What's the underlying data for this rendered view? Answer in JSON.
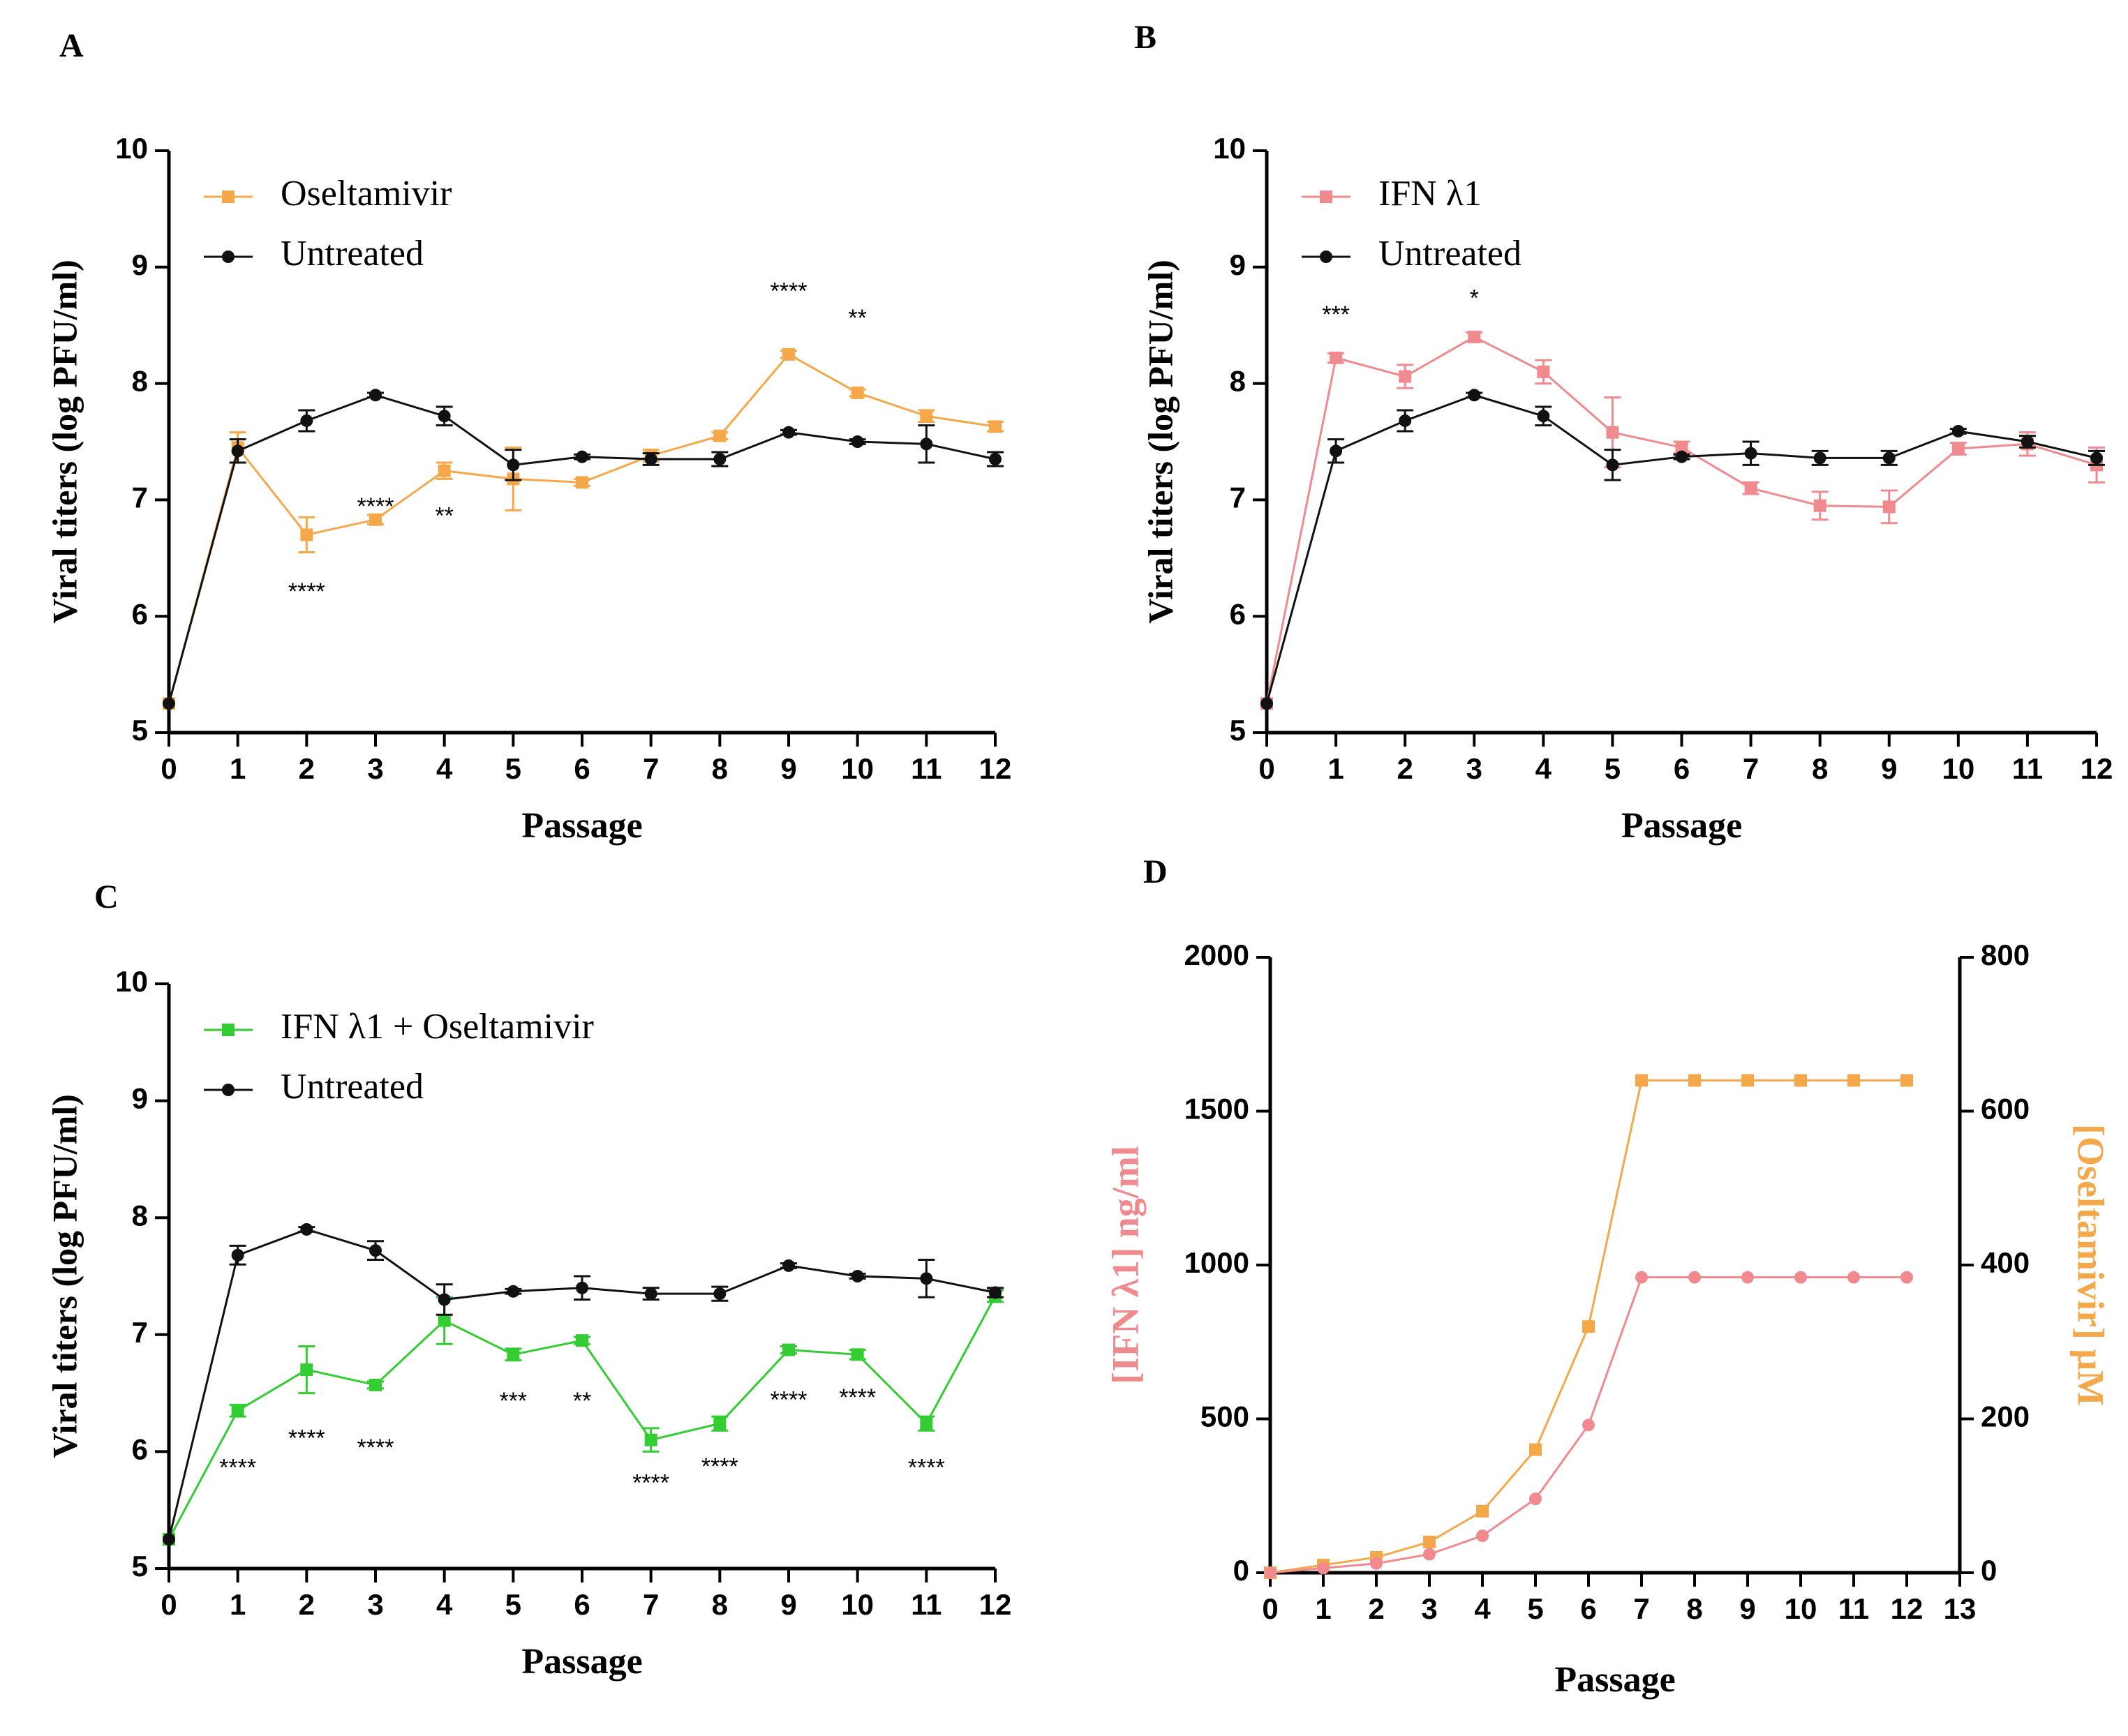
{
  "figure": {
    "panels": [
      "A",
      "B",
      "C",
      "D"
    ]
  },
  "colors": {
    "untreated": "#111111",
    "oseltamivir": "#f5a84a",
    "ifn": "#f08a8e",
    "combo": "#33cc33",
    "axis": "#000000"
  },
  "chart_data": [
    {
      "panel": "A",
      "type": "line",
      "xlabel": "Passage",
      "ylabel": "Viral titers (log PFU/ml)",
      "xlim": [
        0,
        12
      ],
      "ylim": [
        5,
        10
      ],
      "xticks": [
        0,
        1,
        2,
        3,
        4,
        5,
        6,
        7,
        8,
        9,
        10,
        11,
        12
      ],
      "yticks": [
        5,
        6,
        7,
        8,
        9,
        10
      ],
      "legend_position": "top-left",
      "series": [
        {
          "name": "Oseltamivir",
          "color_key": "oseltamivir",
          "marker": "square",
          "x": [
            0,
            1,
            2,
            3,
            4,
            5,
            6,
            7,
            8,
            9,
            10,
            11,
            12
          ],
          "values": [
            5.25,
            7.45,
            6.7,
            6.83,
            7.25,
            7.18,
            7.15,
            7.38,
            7.55,
            8.25,
            7.92,
            7.72,
            7.63
          ],
          "errors": [
            0,
            0.13,
            0.15,
            0.04,
            0.07,
            0.27,
            0.03,
            0.05,
            0.03,
            0.03,
            0.03,
            0.05,
            0.04
          ]
        },
        {
          "name": "Untreated",
          "color_key": "untreated",
          "marker": "circle",
          "x": [
            0,
            1,
            2,
            3,
            4,
            5,
            6,
            7,
            8,
            9,
            10,
            11,
            12
          ],
          "values": [
            5.25,
            7.42,
            7.68,
            7.9,
            7.72,
            7.3,
            7.37,
            7.35,
            7.35,
            7.58,
            7.5,
            7.48,
            7.35
          ],
          "errors": [
            0,
            0.1,
            0.09,
            0.02,
            0.08,
            0.13,
            0.02,
            0.05,
            0.06,
            0.02,
            0.02,
            0.16,
            0.06
          ]
        }
      ],
      "annotations": [
        {
          "x": 2,
          "y": 6.2,
          "text": "****"
        },
        {
          "x": 3,
          "y": 6.93,
          "text": "****"
        },
        {
          "x": 4,
          "y": 6.85,
          "text": "**"
        },
        {
          "x": 9,
          "y": 8.78,
          "text": "****"
        },
        {
          "x": 10,
          "y": 8.55,
          "text": "**"
        }
      ]
    },
    {
      "panel": "B",
      "type": "line",
      "xlabel": "Passage",
      "ylabel": "Viral titers (log PFU/ml)",
      "xlim": [
        0,
        12
      ],
      "ylim": [
        5,
        10
      ],
      "xticks": [
        0,
        1,
        2,
        3,
        4,
        5,
        6,
        7,
        8,
        9,
        10,
        11,
        12
      ],
      "yticks": [
        5,
        6,
        7,
        8,
        9,
        10
      ],
      "legend_position": "top-left",
      "series": [
        {
          "name": "IFN λ1",
          "color_key": "ifn",
          "marker": "square",
          "x": [
            0,
            1,
            2,
            3,
            4,
            5,
            6,
            7,
            8,
            9,
            10,
            11,
            12
          ],
          "values": [
            5.25,
            8.22,
            8.06,
            8.4,
            8.1,
            7.58,
            7.45,
            7.1,
            6.95,
            6.94,
            7.44,
            7.48,
            7.3
          ],
          "errors": [
            0,
            0.04,
            0.1,
            0.04,
            0.1,
            0.3,
            0.05,
            0.05,
            0.12,
            0.14,
            0.05,
            0.1,
            0.15
          ]
        },
        {
          "name": "Untreated",
          "color_key": "untreated",
          "marker": "circle",
          "x": [
            0,
            1,
            2,
            3,
            4,
            5,
            6,
            7,
            8,
            9,
            10,
            11,
            12
          ],
          "values": [
            5.25,
            7.42,
            7.68,
            7.9,
            7.72,
            7.3,
            7.37,
            7.4,
            7.36,
            7.36,
            7.59,
            7.5,
            7.36
          ],
          "errors": [
            0,
            0.1,
            0.09,
            0.02,
            0.08,
            0.13,
            0.02,
            0.1,
            0.06,
            0.06,
            0.02,
            0.05,
            0.06
          ]
        }
      ],
      "annotations": [
        {
          "x": 1,
          "y": 8.58,
          "text": "***"
        },
        {
          "x": 3,
          "y": 8.72,
          "text": "*"
        }
      ]
    },
    {
      "panel": "C",
      "type": "line",
      "xlabel": "Passage",
      "ylabel": "Viral titers (log PFU/ml)",
      "xlim": [
        0,
        12
      ],
      "ylim": [
        5,
        10
      ],
      "xticks": [
        0,
        1,
        2,
        3,
        4,
        5,
        6,
        7,
        8,
        9,
        10,
        11,
        12
      ],
      "yticks": [
        5,
        6,
        7,
        8,
        9,
        10
      ],
      "legend_position": "top-left",
      "series": [
        {
          "name": "IFN λ1 + Oseltamivir",
          "color_key": "combo",
          "marker": "square",
          "x": [
            0,
            1,
            2,
            3,
            4,
            5,
            6,
            7,
            8,
            9,
            10,
            11,
            12
          ],
          "values": [
            5.25,
            6.35,
            6.7,
            6.57,
            7.12,
            6.83,
            6.95,
            6.1,
            6.24,
            6.87,
            6.83,
            6.24,
            7.33
          ],
          "errors": [
            0,
            0.05,
            0.2,
            0.03,
            0.2,
            0.05,
            0.03,
            0.1,
            0.06,
            0.03,
            0.04,
            0.06,
            0.05
          ]
        },
        {
          "name": "Untreated",
          "color_key": "untreated",
          "marker": "circle",
          "x": [
            0,
            1,
            2,
            3,
            4,
            5,
            6,
            7,
            8,
            9,
            10,
            11,
            12
          ],
          "values": [
            5.25,
            7.68,
            7.9,
            7.72,
            7.3,
            7.37,
            7.4,
            7.35,
            7.35,
            7.59,
            7.5,
            7.48,
            7.36
          ],
          "errors": [
            0,
            0.08,
            0.02,
            0.08,
            0.13,
            0.02,
            0.1,
            0.05,
            0.06,
            0.02,
            0.02,
            0.16,
            0.04
          ]
        }
      ],
      "annotations": [
        {
          "x": 1,
          "y": 5.85,
          "text": "****"
        },
        {
          "x": 2,
          "y": 6.1,
          "text": "****"
        },
        {
          "x": 3,
          "y": 6.02,
          "text": "****"
        },
        {
          "x": 5,
          "y": 6.42,
          "text": "***"
        },
        {
          "x": 6,
          "y": 6.42,
          "text": "**"
        },
        {
          "x": 7,
          "y": 5.72,
          "text": "****"
        },
        {
          "x": 8,
          "y": 5.86,
          "text": "****"
        },
        {
          "x": 9,
          "y": 6.43,
          "text": "****"
        },
        {
          "x": 10,
          "y": 6.45,
          "text": "****"
        },
        {
          "x": 11,
          "y": 5.85,
          "text": "****"
        }
      ]
    },
    {
      "panel": "D",
      "type": "line",
      "xlabel": "Passage",
      "ylabel_left": "[IFN λ1] ng/ml",
      "ylabel_right": "[Oseltamivir] μM",
      "xlim": [
        0,
        13
      ],
      "ylim_left": [
        0,
        2000
      ],
      "ylim_right": [
        0,
        800
      ],
      "xticks": [
        0,
        1,
        2,
        3,
        4,
        5,
        6,
        7,
        8,
        9,
        10,
        11,
        12,
        13
      ],
      "yticks_left": [
        0,
        500,
        1000,
        1500,
        2000
      ],
      "yticks_right": [
        0,
        200,
        400,
        600,
        800
      ],
      "series": [
        {
          "name": "IFN λ1",
          "axis": "left",
          "color_key": "ifn",
          "marker": "circle",
          "x": [
            0,
            1,
            2,
            3,
            4,
            5,
            6,
            7,
            8,
            9,
            10,
            11,
            12
          ],
          "values": [
            0,
            15,
            30,
            60,
            120,
            240,
            480,
            960,
            960,
            960,
            960,
            960,
            960
          ]
        },
        {
          "name": "Oseltamivir",
          "axis": "right",
          "color_key": "oseltamivir",
          "marker": "square",
          "x": [
            0,
            1,
            2,
            3,
            4,
            5,
            6,
            7,
            8,
            9,
            10,
            11,
            12
          ],
          "values": [
            0,
            10,
            20,
            40,
            80,
            160,
            320,
            640,
            640,
            640,
            640,
            640,
            640
          ]
        }
      ]
    }
  ]
}
